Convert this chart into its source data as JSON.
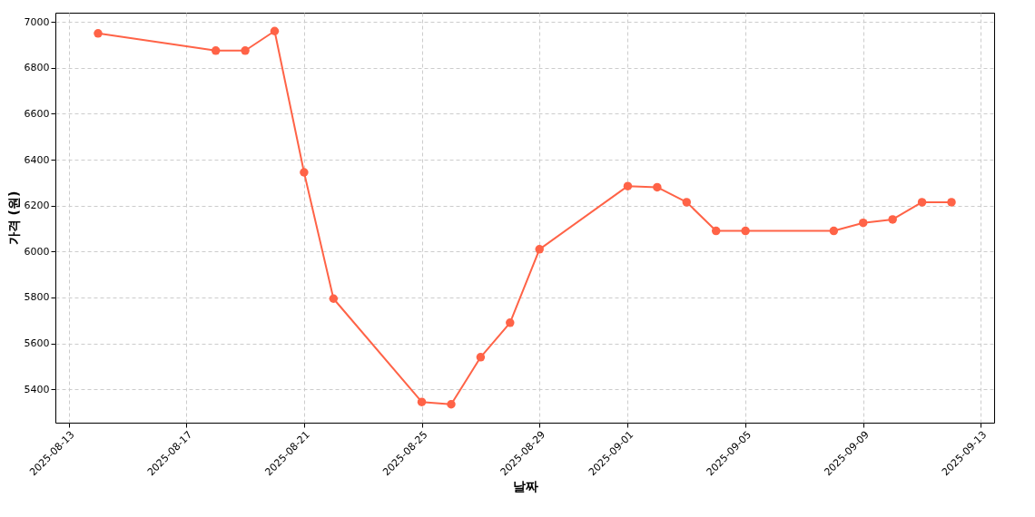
{
  "chart_data": {
    "type": "line",
    "xlabel": "날짜",
    "ylabel": "가격 (원)",
    "x": [
      "2025-08-14",
      "2025-08-18",
      "2025-08-19",
      "2025-08-20",
      "2025-08-21",
      "2025-08-22",
      "2025-08-25",
      "2025-08-26",
      "2025-08-27",
      "2025-08-28",
      "2025-08-29",
      "2025-09-01",
      "2025-09-02",
      "2025-09-03",
      "2025-09-04",
      "2025-09-05",
      "2025-09-08",
      "2025-09-09",
      "2025-09-10",
      "2025-09-11",
      "2025-09-12"
    ],
    "series": [
      {
        "color": "#ff6347",
        "values": [
          6950,
          6875,
          6875,
          6960,
          6345,
          5795,
          5345,
          5335,
          5540,
          5690,
          6010,
          6285,
          6280,
          6215,
          6090,
          6090,
          6090,
          6125,
          6140,
          6215,
          6215
        ]
      }
    ],
    "xlim": [
      "2025-08-12T13:12",
      "2025-09-13T10:48"
    ],
    "xticks": [
      "2025-08-13",
      "2025-08-17",
      "2025-08-21",
      "2025-08-25",
      "2025-08-29",
      "2025-09-01",
      "2025-09-05",
      "2025-09-09",
      "2025-09-13"
    ],
    "ylim": [
      5255,
      7040
    ],
    "yticks": [
      5400,
      5600,
      5800,
      6000,
      6200,
      6400,
      6600,
      6800,
      7000
    ],
    "grid": true,
    "marker": "circle",
    "line_style": "solid"
  }
}
